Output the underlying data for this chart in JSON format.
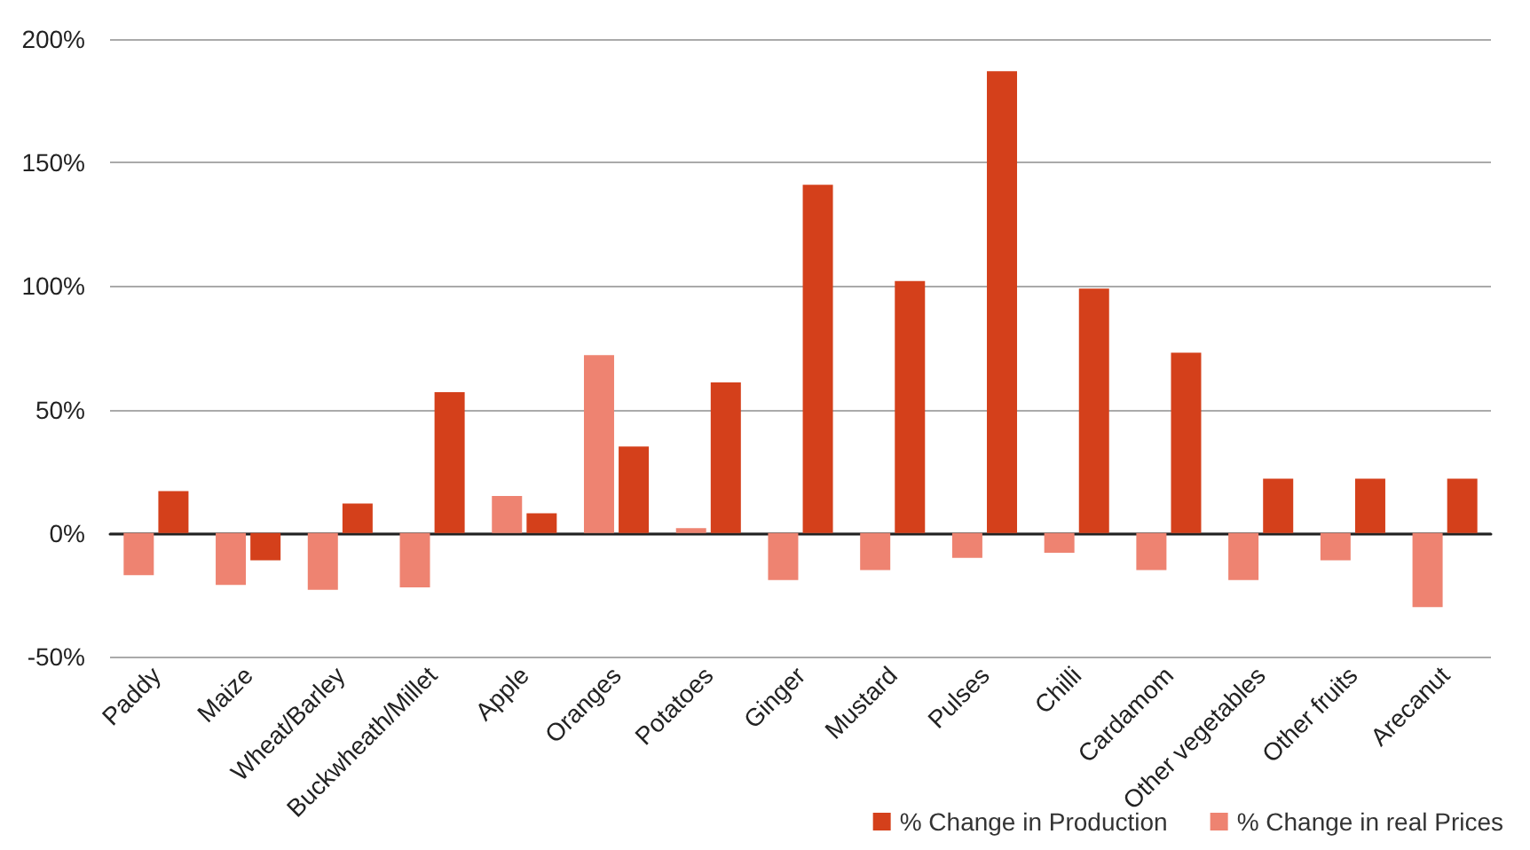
{
  "chart_data": {
    "type": "bar",
    "categories": [
      "Paddy",
      "Maize",
      "Wheat/Barley",
      "Buckwheath/Millet",
      "Apple",
      "Oranges",
      "Potatoes",
      "Ginger",
      "Mustard",
      "Pulses",
      "Chilli",
      "Cardamom",
      "Other vegetables",
      "Other fruits",
      "Arecanut"
    ],
    "series": [
      {
        "name": "% Change in Production",
        "color": "#d4401b",
        "values": [
          17,
          -11,
          12,
          57,
          8,
          35,
          61,
          141,
          102,
          187,
          99,
          73,
          22,
          22,
          22
        ]
      },
      {
        "name": "% Change in real Prices",
        "color": "#ee8371",
        "values": [
          -17,
          -21,
          -23,
          -22,
          15,
          72,
          2,
          -19,
          -15,
          -10,
          -8,
          -15,
          -19,
          -11,
          -30
        ]
      }
    ],
    "ylim": [
      -50,
      200
    ],
    "yticks": [
      {
        "value": -50,
        "label": "-50%"
      },
      {
        "value": 0,
        "label": "0%"
      },
      {
        "value": 50,
        "label": "50%"
      },
      {
        "value": 100,
        "label": "100%"
      },
      {
        "value": 150,
        "label": "150%"
      },
      {
        "value": 200,
        "label": "200%"
      }
    ],
    "grid": "y",
    "legend": "bottom right"
  }
}
